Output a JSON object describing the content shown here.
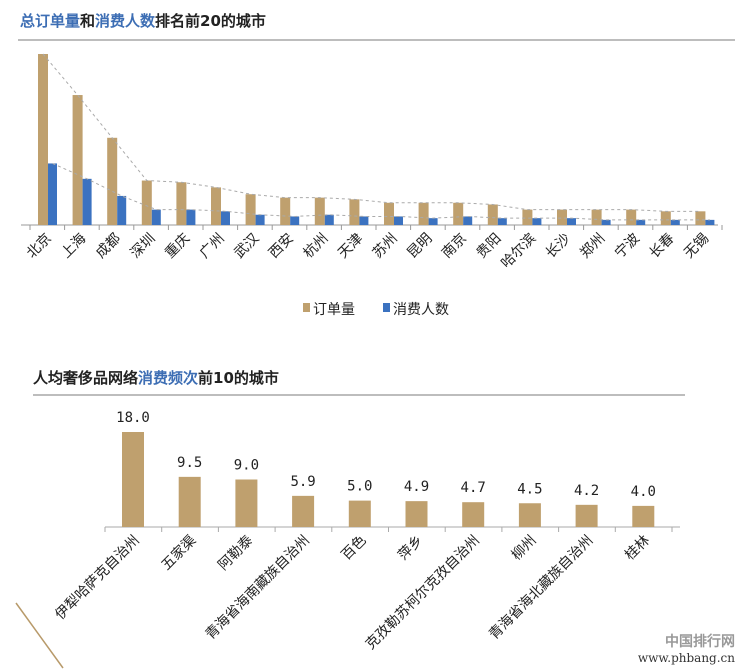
{
  "titles": {
    "top": {
      "p1": "总订单量",
      "p2": "和",
      "p3": "消费人数",
      "p4": "排名前20的城市"
    },
    "bottom": {
      "p1": "人均奢侈品网络",
      "p2": "消费频次",
      "p3": "前10的城市"
    }
  },
  "colors": {
    "orders": "#bfa06e",
    "consumers": "#3b72c0",
    "highlight": "#3d6eb4"
  },
  "chart_data": [
    {
      "type": "bar",
      "title": "总订单量和消费人数排名前20的城市",
      "categories": [
        "北京",
        "上海",
        "成都",
        "深圳",
        "重庆",
        "广州",
        "武汉",
        "西安",
        "杭州",
        "天津",
        "苏州",
        "昆明",
        "南京",
        "贵阳",
        "哈尔滨",
        "长沙",
        "郑州",
        "宁波",
        "长春",
        "无锡"
      ],
      "series": [
        {
          "name": "订单量",
          "values": [
            100,
            76,
            51,
            26,
            25,
            22,
            18,
            16,
            16,
            15,
            13,
            13,
            13,
            12,
            9,
            9,
            9,
            9,
            8,
            8
          ]
        },
        {
          "name": "消费人数",
          "values": [
            36,
            27,
            17,
            9,
            9,
            8,
            6,
            5,
            6,
            5,
            5,
            4,
            5,
            4,
            4,
            4,
            3,
            3,
            3,
            3
          ]
        }
      ],
      "note_scale": "relative, no axis printed",
      "trend_lines": "dashed",
      "legend": "bottom",
      "grid": false
    },
    {
      "type": "bar",
      "title": "人均奢侈品网络消费频次前10的城市",
      "categories": [
        "伊犁哈萨克自治州",
        "五家渠",
        "阿勒泰",
        "青海省海南藏族自治州",
        "百色",
        "萍乡",
        "克孜勒苏柯尔克孜自治州",
        "柳州",
        "青海省海北藏族自治州",
        "桂林"
      ],
      "values": [
        18.0,
        9.5,
        9.0,
        5.9,
        5.0,
        4.9,
        4.7,
        4.5,
        4.2,
        4.0
      ],
      "data_labels": [
        "18.0",
        "9.5",
        "9.0",
        "5.9",
        "5.0",
        "4.9",
        "4.7",
        "4.5",
        "4.2",
        "4.0"
      ],
      "ylim": [
        0,
        18
      ],
      "grid": false
    }
  ],
  "watermark": {
    "line1": "中国排行网",
    "line2": "www.phbang.cn"
  }
}
